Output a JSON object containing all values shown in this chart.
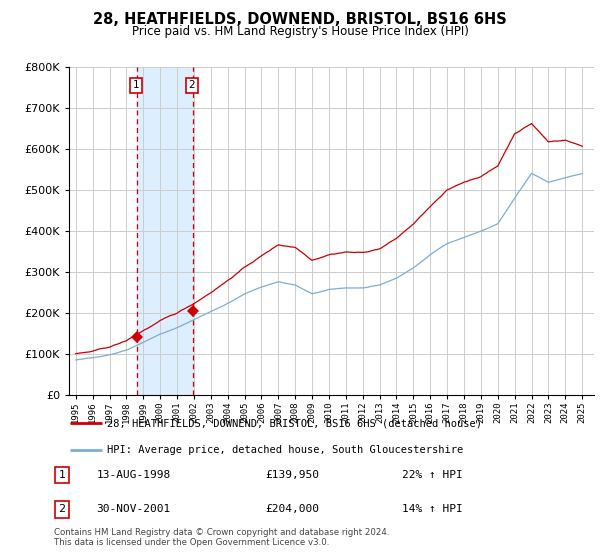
{
  "title1": "28, HEATHFIELDS, DOWNEND, BRISTOL, BS16 6HS",
  "title2": "Price paid vs. HM Land Registry's House Price Index (HPI)",
  "legend_line1": "28, HEATHFIELDS, DOWNEND, BRISTOL, BS16 6HS (detached house)",
  "legend_line2": "HPI: Average price, detached house, South Gloucestershire",
  "sale1_date": "13-AUG-1998",
  "sale1_price": "£139,950",
  "sale1_hpi": "22% ↑ HPI",
  "sale2_date": "30-NOV-2001",
  "sale2_price": "£204,000",
  "sale2_hpi": "14% ↑ HPI",
  "footnote1": "Contains HM Land Registry data © Crown copyright and database right 2024.",
  "footnote2": "This data is licensed under the Open Government Licence v3.0.",
  "red_color": "#cc0000",
  "blue_color": "#7aaed6",
  "background_color": "#ffffff",
  "grid_color": "#cccccc",
  "highlight_color": "#ddeeff",
  "ylim": [
    0,
    800000
  ],
  "yticks": [
    0,
    100000,
    200000,
    300000,
    400000,
    500000,
    600000,
    700000,
    800000
  ],
  "sale1_x": 1998.625,
  "sale1_y": 139950,
  "sale2_x": 2001.917,
  "sale2_y": 204000,
  "xlim_left": 1994.6,
  "xlim_right": 2025.7
}
